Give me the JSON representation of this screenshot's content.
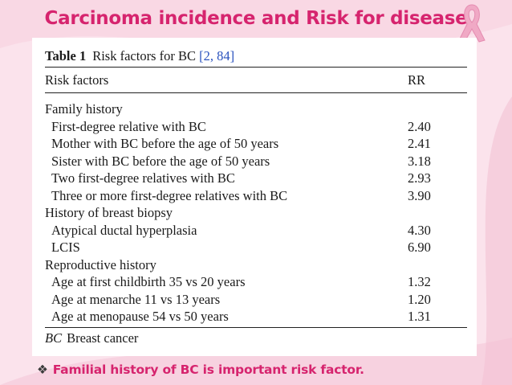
{
  "slide": {
    "title": "Carcinoma incidence and Risk for disease",
    "bullet_icon": "four-diamond-bullet-icon",
    "bullet_text": "Familial history of BC is important risk factor.",
    "accent_color": "#d6246e"
  },
  "table": {
    "number": "Table 1",
    "caption": "Risk factors for BC",
    "refs": "[2, 84]",
    "header_left": "Risk factors",
    "header_right": "RR",
    "rows": [
      {
        "label": "Family history",
        "value": ""
      },
      {
        "label": "First-degree relative with BC",
        "value": "2.40"
      },
      {
        "label": "Mother with BC before the age of 50 years",
        "value": "2.41"
      },
      {
        "label": "Sister with BC before the age of 50 years",
        "value": "3.18"
      },
      {
        "label": "Two first-degree relatives with BC",
        "value": "2.93"
      },
      {
        "label": "Three or more first-degree relatives with BC",
        "value": "3.90"
      },
      {
        "label": "History of breast biopsy",
        "value": ""
      },
      {
        "label": "Atypical ductal hyperplasia",
        "value": "4.30"
      },
      {
        "label": "LCIS",
        "value": "6.90"
      },
      {
        "label": "Reproductive history",
        "value": ""
      },
      {
        "label": "Age at first childbirth 35 vs 20 years",
        "value": "1.32"
      },
      {
        "label": "Age at menarche 11 vs 13 years",
        "value": "1.20"
      },
      {
        "label": "Age at menopause 54 vs 50 years",
        "value": "1.31"
      }
    ],
    "footnote_abbr": "BC",
    "footnote_text": "Breast cancer"
  }
}
